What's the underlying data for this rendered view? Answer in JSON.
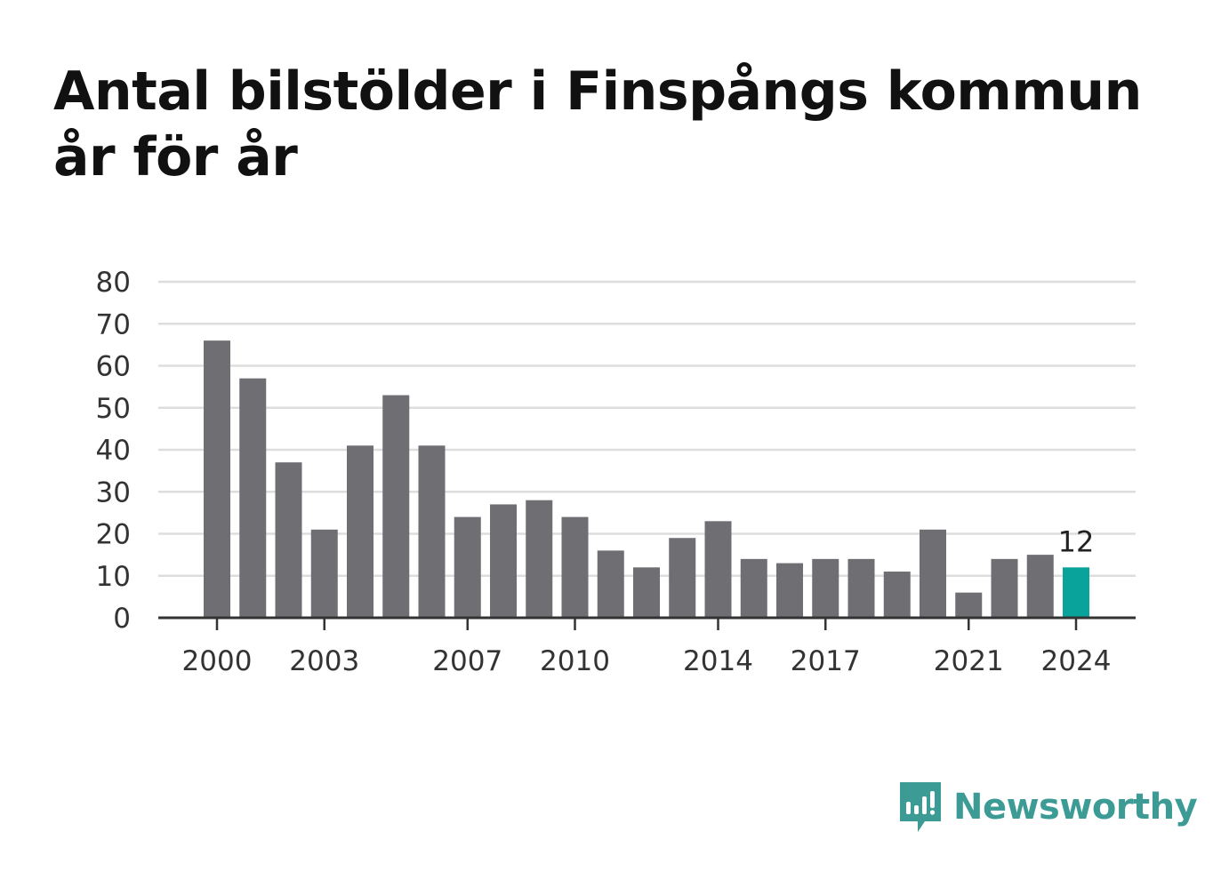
{
  "title": "Antal bilstölder i Finspångs kommun år för år",
  "colors": {
    "bar": "#6f6e73",
    "highlight": "#0aa39b",
    "grid": "#dddddd",
    "axis": "#333333",
    "brand": "#3d9b96"
  },
  "brand": {
    "name": "Newsworthy",
    "icon": "chart-speech-bubble-icon"
  },
  "chart_data": {
    "type": "bar",
    "title": "Antal bilstölder i Finspångs kommun år för år",
    "xlabel": "",
    "ylabel": "",
    "categories": [
      2000,
      2001,
      2002,
      2003,
      2004,
      2005,
      2006,
      2007,
      2008,
      2009,
      2010,
      2011,
      2012,
      2013,
      2014,
      2015,
      2016,
      2017,
      2018,
      2019,
      2020,
      2021,
      2022,
      2023,
      2024
    ],
    "values": [
      66,
      57,
      37,
      21,
      41,
      53,
      41,
      24,
      27,
      28,
      24,
      16,
      12,
      19,
      23,
      14,
      13,
      14,
      14,
      11,
      21,
      6,
      14,
      15,
      12
    ],
    "x_tick_labels": [
      "2000",
      "2003",
      "2007",
      "2010",
      "2014",
      "2017",
      "2021",
      "2024"
    ],
    "y_ticks": [
      0,
      10,
      20,
      30,
      40,
      50,
      60,
      70,
      80
    ],
    "ylim": [
      0,
      80
    ],
    "grid": true,
    "highlight_category": 2024,
    "annotations": [
      {
        "category": 2024,
        "text": "12"
      }
    ]
  }
}
